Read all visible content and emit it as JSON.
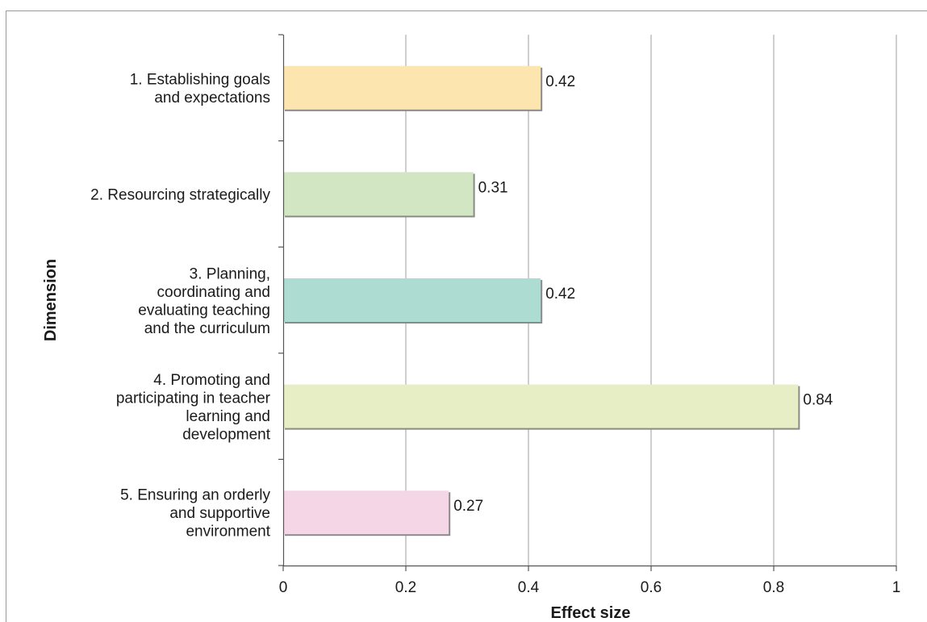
{
  "chart_data": {
    "type": "bar",
    "orientation": "horizontal",
    "categories": [
      [
        "1.  Establishing goals",
        "and expectations"
      ],
      [
        "2.  Resourcing strategically"
      ],
      [
        "3.  Planning,",
        "coordinating and",
        "evaluating teaching",
        "and the curriculum"
      ],
      [
        "4.  Promoting and",
        "participating in teacher",
        "learning and",
        "development"
      ],
      [
        "5.  Ensuring an orderly",
        "and supportive",
        "environment"
      ]
    ],
    "values": [
      0.42,
      0.31,
      0.42,
      0.84,
      0.27
    ],
    "value_labels": [
      "0.42",
      "0.31",
      "0.42",
      "0.84",
      "0.27"
    ],
    "bar_colors": [
      "#fde5b0",
      "#d3e6c4",
      "#acdcd2",
      "#e7edc4",
      "#f5d6e6"
    ],
    "xlabel": "Effect size",
    "ylabel": "Dimension",
    "xlim": [
      0,
      1
    ],
    "xticks": [
      0,
      0.2,
      0.4,
      0.6,
      0.8,
      1
    ],
    "xtick_labels": [
      "0",
      "0.2",
      "0.4",
      "0.6",
      "0.8",
      "1"
    ],
    "grid": "vertical",
    "legend": "none"
  }
}
